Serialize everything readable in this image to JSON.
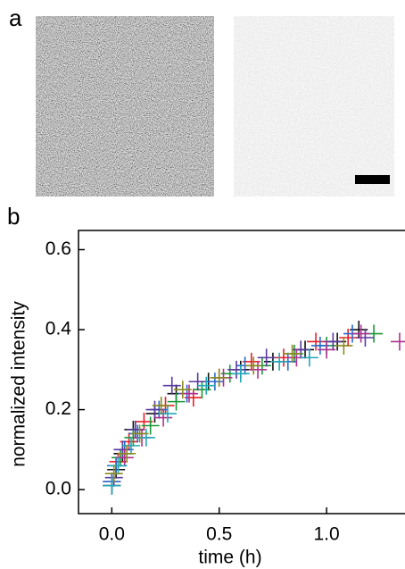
{
  "panel_labels": [
    "a",
    "b"
  ],
  "chart_data": {
    "type": "scatter",
    "xlabel": "time (h)",
    "ylabel": "normalized intensity",
    "xlim": [
      -0.155,
      1.365
    ],
    "ylim": [
      -0.06,
      0.648
    ],
    "xticks": [
      {
        "value": 0,
        "label": "0.0"
      },
      0.5,
      {
        "value": 1,
        "label": "1.0"
      }
    ],
    "yticks": [
      {
        "value": 0,
        "label": "0.0"
      },
      0.2,
      0.4,
      0.6
    ],
    "series": [
      {
        "color": "#111111",
        "x": [
          0,
          0.02,
          0.05,
          0.1,
          0.2,
          0.3,
          0.45,
          0.6,
          0.75,
          0.9,
          1.05,
          1.15
        ],
        "values": [
          0.01,
          0.05,
          0.09,
          0.15,
          0.19,
          0.24,
          0.27,
          0.3,
          0.32,
          0.35,
          0.37,
          0.4
        ]
      },
      {
        "color": "#e8202a",
        "x": [
          0,
          0.03,
          0.08,
          0.15,
          0.25,
          0.38,
          0.5,
          0.65,
          0.8,
          0.95,
          1.1
        ],
        "values": [
          0.02,
          0.07,
          0.12,
          0.17,
          0.21,
          0.23,
          0.28,
          0.32,
          0.33,
          0.37,
          0.38
        ]
      },
      {
        "color": "#1a9a3a",
        "x": [
          0,
          0.04,
          0.1,
          0.18,
          0.3,
          0.42,
          0.55,
          0.7,
          0.85,
          1.0,
          1.22
        ],
        "values": [
          0.01,
          0.08,
          0.13,
          0.16,
          0.22,
          0.25,
          0.29,
          0.31,
          0.34,
          0.36,
          0.39
        ]
      },
      {
        "color": "#2a6ad0",
        "x": [
          0,
          0.02,
          0.06,
          0.12,
          0.22,
          0.35,
          0.48,
          0.62,
          0.82,
          0.97,
          1.12
        ],
        "values": [
          0.02,
          0.06,
          0.1,
          0.14,
          0.2,
          0.24,
          0.27,
          0.31,
          0.32,
          0.36,
          0.39
        ]
      },
      {
        "color": "#5a3aa0",
        "x": [
          0.01,
          0.05,
          0.11,
          0.2,
          0.28,
          0.4,
          0.58,
          0.72,
          0.88,
          1.03,
          1.18
        ],
        "values": [
          0.03,
          0.1,
          0.15,
          0.2,
          0.26,
          0.27,
          0.3,
          0.33,
          0.35,
          0.37,
          0.38
        ]
      },
      {
        "color": "#b03090",
        "x": [
          0,
          0.06,
          0.14,
          0.24,
          0.36,
          0.52,
          0.68,
          0.86,
          1.0,
          1.16,
          1.34
        ],
        "values": [
          0.01,
          0.08,
          0.13,
          0.18,
          0.24,
          0.28,
          0.3,
          0.33,
          0.35,
          0.39,
          0.37
        ]
      },
      {
        "color": "#20a8b8",
        "x": [
          0,
          0.03,
          0.09,
          0.16,
          0.26,
          0.44,
          0.6,
          0.78,
          0.92
        ],
        "values": [
          0.01,
          0.06,
          0.11,
          0.13,
          0.19,
          0.26,
          0.29,
          0.32,
          0.33
        ]
      },
      {
        "color": "#8a8a20",
        "x": [
          0.01,
          0.07,
          0.13,
          0.23,
          0.33,
          0.5,
          0.66,
          0.84,
          1.08
        ],
        "values": [
          0.04,
          0.09,
          0.14,
          0.21,
          0.25,
          0.28,
          0.31,
          0.34,
          0.36
        ]
      }
    ]
  }
}
